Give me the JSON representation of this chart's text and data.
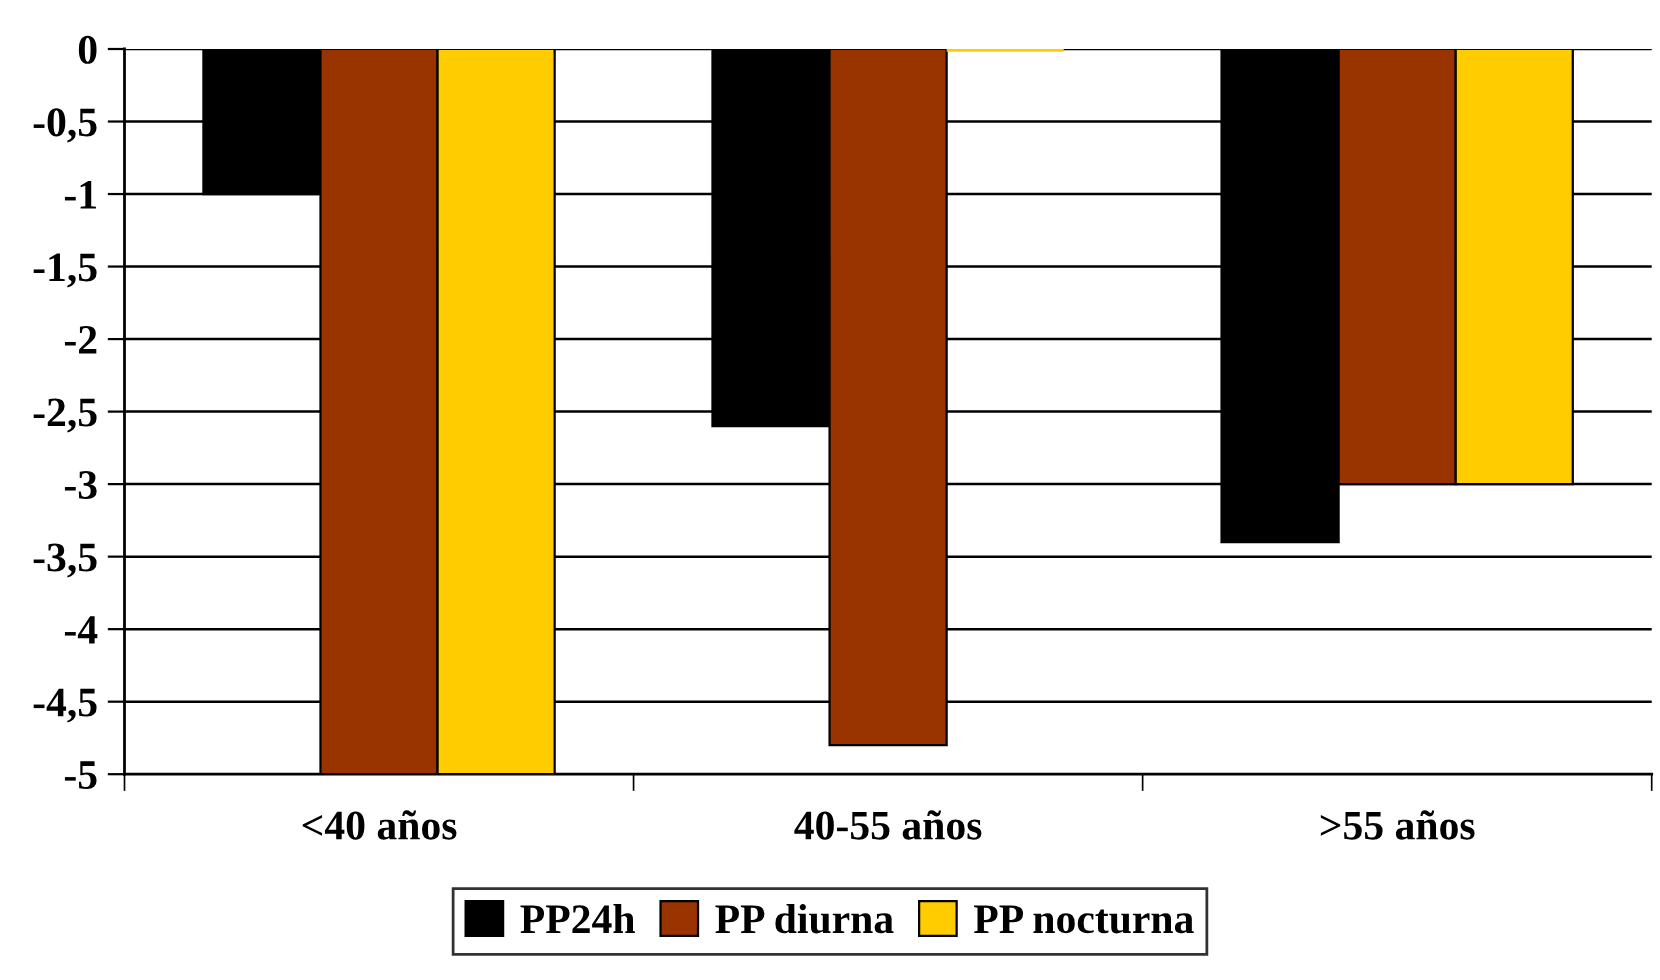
{
  "chart_data": {
    "type": "bar",
    "categories": [
      "<40 años",
      "40-55 años",
      ">55 años"
    ],
    "series": [
      {
        "name": "PP24h",
        "color": "#000000",
        "values": [
          -1.0,
          -2.6,
          -3.4
        ]
      },
      {
        "name": "PP diurna",
        "color": "#993300",
        "values": [
          -5,
          -4.8,
          -3.0
        ]
      },
      {
        "name": "PP nocturna",
        "color": "#ffcc00",
        "values": [
          -5,
          0,
          -3.0
        ]
      }
    ],
    "ylim": [
      -5,
      0
    ],
    "yticks": [
      0,
      {
        "value": -0.5,
        "label": "-0,5"
      },
      -1,
      {
        "value": -1.5,
        "label": "-1,5"
      },
      -2,
      {
        "value": -2.5,
        "label": "-2,5"
      },
      -3,
      {
        "value": -3.5,
        "label": "-3,5"
      },
      -4,
      {
        "value": -4.5,
        "label": "-4,5"
      },
      -5
    ],
    "grid": "y",
    "legend": "bottom"
  }
}
